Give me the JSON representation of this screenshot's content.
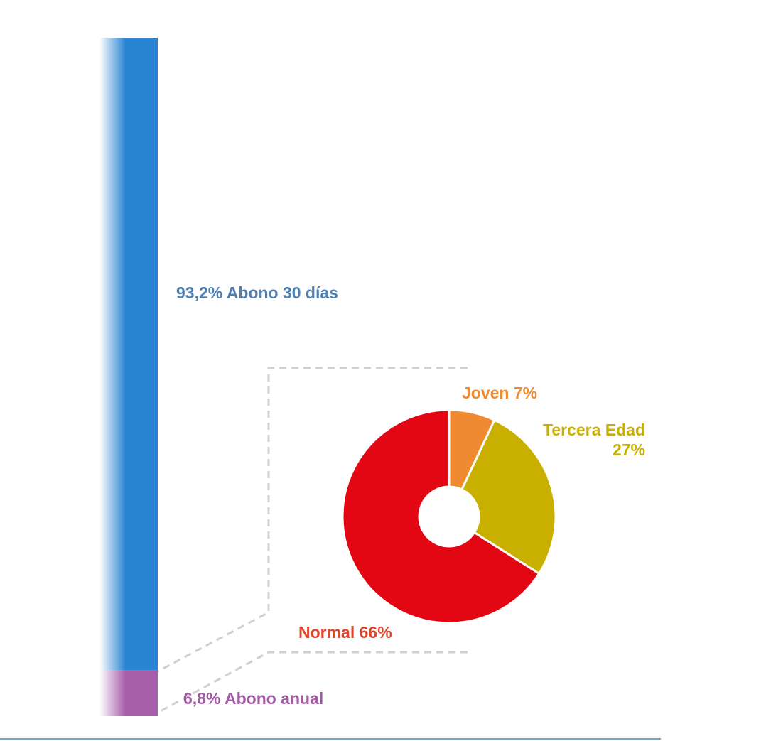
{
  "chart_data": [
    {
      "type": "stacked-bar",
      "series": [
        {
          "name": "Abono 30 días",
          "color": "#2a84d4",
          "label_color": "#4f80b4",
          "values": [
            93.2
          ],
          "value_labels": [
            "93,2%"
          ]
        },
        {
          "name": "Abono anual",
          "color": "#a65ea8",
          "label_color": "#a35ba6",
          "values": [
            6.8
          ],
          "value_labels": [
            "6,8%"
          ]
        }
      ]
    },
    {
      "type": "donut",
      "categories": [
        "Joven",
        "Tercera Edad",
        "Normal"
      ],
      "values": [
        7,
        27,
        66
      ],
      "value_labels": [
        "7%",
        "27%",
        "66%"
      ],
      "colors": [
        "#f08a30",
        "#c9b000",
        "#e30613"
      ],
      "label_colors": [
        "#f08a30",
        "#c9b000",
        "#e0442a"
      ]
    }
  ]
}
